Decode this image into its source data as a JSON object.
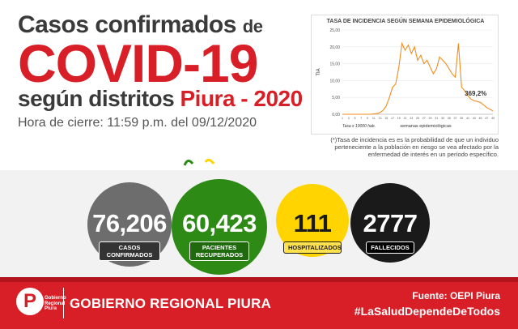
{
  "header": {
    "line1": "Casos confirmados",
    "line1_suffix": "de",
    "line2": "COVID-19",
    "line3_a": "según distritos",
    "line3_b": "Piura - 2020",
    "subtitle": "Hora de cierre: 11:59 p.m. del 09/12/2020"
  },
  "stats": [
    {
      "value": "76,206",
      "label_1": "CASOS",
      "label_2": "CONFIRMADOS"
    },
    {
      "value": "60,423",
      "label_1": "PACIENTES",
      "label_2": "RECUPERADOS"
    },
    {
      "value": "111",
      "label_1": "HOSPITALIZADOS",
      "label_2": ""
    },
    {
      "value": "2777",
      "label_1": "FALLECIDOS",
      "label_2": ""
    }
  ],
  "chart_data": {
    "type": "line",
    "title": "TASA DE INCIDENCIA SEGÚN SEMANA EPIDEMIOLÓGICA",
    "xlabel": "semanas epidemiológicas",
    "ylabel": "TIA",
    "x_note": "Tasa x 10000 hab.",
    "annotation": "369,2%",
    "ylim": [
      0,
      25
    ],
    "yticks": [
      "0,00",
      "5,00",
      "10,00",
      "15,00",
      "20,00",
      "25,00"
    ],
    "x": [
      1,
      2,
      3,
      4,
      5,
      6,
      7,
      8,
      9,
      10,
      11,
      12,
      13,
      14,
      15,
      16,
      17,
      18,
      19,
      20,
      21,
      22,
      23,
      24,
      25,
      26,
      27,
      28,
      29,
      30,
      31,
      32,
      33,
      34,
      35,
      36,
      37,
      38,
      39,
      40,
      41,
      42,
      43,
      44,
      45,
      46,
      47,
      48,
      49
    ],
    "series": [
      {
        "color": "#f08c1e",
        "values": [
          0,
          0,
          0,
          0,
          0,
          0,
          0,
          0,
          0,
          0,
          0.1,
          0.2,
          0.5,
          1.2,
          2.5,
          5,
          8,
          9,
          14,
          21,
          19,
          20.5,
          18,
          20,
          16,
          17.5,
          15,
          16,
          14,
          12,
          13.5,
          17,
          16,
          15,
          13.5,
          12,
          11,
          21,
          8,
          7,
          5.5,
          4.5,
          4,
          3.8,
          3.5,
          2.8,
          2,
          1.5,
          1
        ]
      }
    ],
    "xticks": [
      "1",
      "3",
      "5",
      "7",
      "9",
      "11",
      "13",
      "15",
      "17",
      "19",
      "21",
      "23",
      "25",
      "27",
      "29",
      "31",
      "33",
      "35",
      "37",
      "39",
      "41",
      "43",
      "45",
      "47",
      "49"
    ]
  },
  "chart_note": "(*)Tasa de incidencia es es la probabilidad de que un individuo perteneciente a la población en riesgo se vea afectado por la enfermedad de interés en un período específico.",
  "footer": {
    "logo_letter": "P",
    "logo_text_1": "Gobierno",
    "logo_text_2": "Regional",
    "logo_text_3": "Piura",
    "org": "GOBIERNO REGIONAL PIURA",
    "source": "Fuente: OEPI Piura",
    "hashtag": "#LaSaludDependeDeTodos"
  },
  "colors": {
    "brand_red": "#d81e26",
    "grey_circle": "#6d6d6d",
    "green_circle": "#2c8a15",
    "yellow_circle": "#ffd400",
    "black_circle": "#1a1a1a",
    "line": "#f08c1e"
  }
}
